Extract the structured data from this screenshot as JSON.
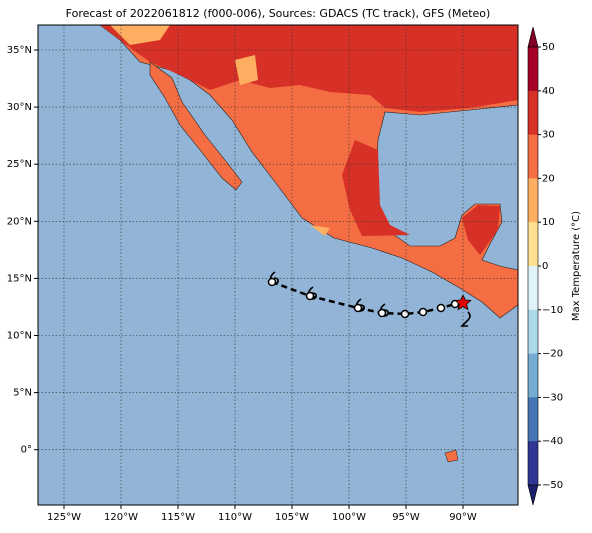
{
  "title": "Forecast of 2022061812 (f000-006), Sources: GDACS (TC track), GFS (Meteo)",
  "axes": {
    "x_ticks": [
      "125°W",
      "120°W",
      "115°W",
      "110°W",
      "105°W",
      "100°W",
      "95°W",
      "90°W"
    ],
    "y_ticks": [
      "35°N",
      "30°N",
      "25°N",
      "20°N",
      "15°N",
      "10°N",
      "5°N",
      "0°"
    ]
  },
  "colorbar": {
    "label": "Max Temperature (°C)",
    "ticks": [
      "50",
      "40",
      "30",
      "20",
      "10",
      "0",
      "−10",
      "−20",
      "−30",
      "−40",
      "−50"
    ]
  }
}
